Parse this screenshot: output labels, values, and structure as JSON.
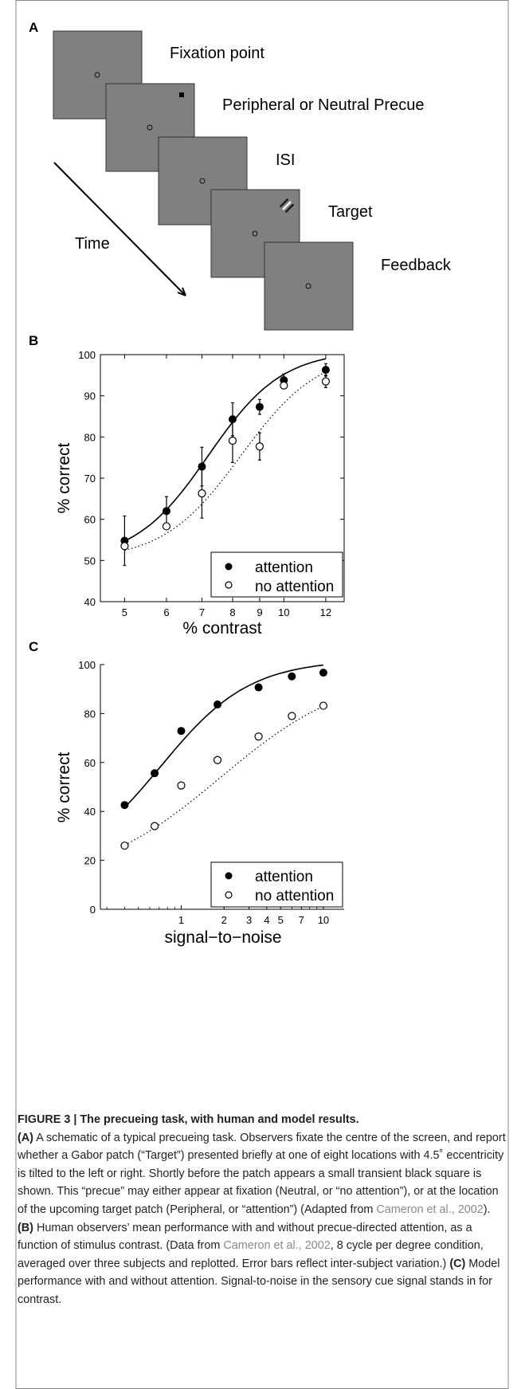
{
  "panel_a": {
    "label": "A",
    "stages": [
      "Fixation point",
      "Peripheral or Neutral Precue",
      "ISI",
      "Target",
      "Feedback"
    ],
    "time_label": "Time"
  },
  "chart_data": [
    {
      "panel": "B",
      "type": "scatter",
      "xlabel": "% contrast",
      "ylabel": "% correct",
      "x_scale": "log",
      "xticks": [
        "5",
        "6",
        "7",
        "8",
        "9",
        "10",
        "12"
      ],
      "yticks": [
        "40",
        "50",
        "60",
        "70",
        "80",
        "90",
        "100"
      ],
      "ylim": [
        40,
        100
      ],
      "xlim": [
        4.5,
        13
      ],
      "legend": "bottom-right",
      "series": [
        {
          "name": "attention",
          "marker": "filled-circle",
          "x": [
            5,
            6,
            7,
            8,
            9,
            10,
            12
          ],
          "y": [
            54.8,
            62.0,
            72.8,
            84.3,
            87.3,
            93.8,
            96.3
          ],
          "error": [
            6,
            3.5,
            4.7,
            4.0,
            1.8,
            1.5,
            1.5
          ],
          "fit": "solid"
        },
        {
          "name": "no attention",
          "marker": "open-circle",
          "x": [
            5,
            6,
            7,
            8,
            9,
            10,
            12
          ],
          "y": [
            53.5,
            58.3,
            66.3,
            79.1,
            77.7,
            92.5,
            93.5
          ],
          "error": [
            0,
            0,
            6,
            5.3,
            3.3,
            0,
            1.5
          ],
          "fit": "dotted"
        }
      ]
    },
    {
      "panel": "C",
      "type": "scatter",
      "xlabel": "signal−to−noise",
      "ylabel": "% correct",
      "x_scale": "log",
      "xticks": [
        "1",
        "2",
        "3",
        "4",
        "5",
        "7",
        "10"
      ],
      "yticks": [
        "0",
        "20",
        "40",
        "60",
        "80",
        "100"
      ],
      "ylim": [
        0,
        100
      ],
      "xlim": [
        0.27,
        14
      ],
      "legend": "bottom-right",
      "series": [
        {
          "name": "attention",
          "marker": "filled-circle",
          "x": [
            0.4,
            0.65,
            1.0,
            1.8,
            3.5,
            6.0,
            10.0
          ],
          "y": [
            42.6,
            55.6,
            72.9,
            83.7,
            90.7,
            95.2,
            96.7
          ],
          "fit": "solid"
        },
        {
          "name": "no attention",
          "marker": "open-circle",
          "x": [
            0.4,
            0.65,
            1.0,
            1.8,
            3.5,
            6.0,
            10.0
          ],
          "y": [
            26.0,
            34.0,
            50.6,
            61.0,
            70.6,
            79.0,
            83.2
          ],
          "fit": "dotted"
        }
      ]
    }
  ],
  "caption": {
    "head": "FIGURE 3 | The precueing task, with human and model results.",
    "a_label": "(A)",
    "a_text1": " A schematic of a typical precueing task. Observers fixate the centre of the screen, and report whether a Gabor patch (“Target”) presented briefly at one of eight locations with 4.5˚ eccentricity is tilted to the left or right. Shortly before the patch appears a small transient black square is shown. This “precue” may either appear at fixation (Neutral, or “no attention”), or at the location of the upcoming target patch (Peripheral, or “attention”) (Adapted from ",
    "ref1": "Cameron et al., 2002",
    "a_text2": "). ",
    "b_label": "(B)",
    "b_text1": " Human observers’ mean performance with and without precue-directed attention, as a function of stimulus contrast. (Data from ",
    "ref2": "Cameron et al., 2002",
    "b_text2": ", 8 cycle per degree condition, averaged over three subjects and replotted. Error bars reflect inter-subject variation.) ",
    "c_label": "(C)",
    "c_text": " Model performance with and without attention. Signal-to-noise in the sensory cue signal stands in for contrast."
  },
  "colors": {
    "screen_gray": "#808080",
    "caption_text": "#231f20",
    "reference_link": "#8a8a8a",
    "border": "#888888"
  }
}
